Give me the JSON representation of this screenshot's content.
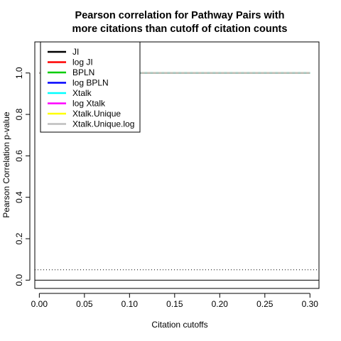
{
  "chart_data": {
    "type": "line",
    "title_lines": [
      "Pearson correlation for Pathway Pairs with",
      "more citations than cutoff of citation counts"
    ],
    "xlabel": "Citation cutoffs",
    "ylabel": "Pearson Correlation p-value",
    "xlim": [
      -0.005,
      0.31
    ],
    "ylim": [
      -0.04,
      1.15
    ],
    "x_ticks": [
      "0.00",
      "0.05",
      "0.10",
      "0.15",
      "0.20",
      "0.25",
      "0.30"
    ],
    "x_tick_values": [
      0.0,
      0.05,
      0.1,
      0.15,
      0.2,
      0.25,
      0.3
    ],
    "y_ticks": [
      "0.0",
      "0.2",
      "0.4",
      "0.6",
      "0.8",
      "1.0"
    ],
    "y_tick_values": [
      0.0,
      0.2,
      0.4,
      0.6,
      0.8,
      1.0
    ],
    "x": [
      0.0,
      0.01,
      0.02,
      0.03,
      0.04,
      0.05,
      0.06,
      0.07,
      0.08,
      0.09,
      0.1,
      0.11,
      0.12,
      0.13,
      0.14,
      0.15,
      0.16,
      0.17,
      0.18,
      0.19,
      0.2,
      0.21,
      0.22,
      0.23,
      0.24,
      0.25,
      0.26,
      0.27,
      0.28,
      0.29,
      0.3
    ],
    "series": [
      {
        "name": "JI",
        "color": "#000000",
        "dash": "solid",
        "values": [
          1,
          1,
          1,
          1,
          1,
          1,
          1,
          1,
          1,
          1,
          1,
          1,
          1,
          1,
          1,
          1,
          1,
          1,
          1,
          1,
          1,
          1,
          1,
          1,
          1,
          1,
          1,
          1,
          1,
          1,
          1
        ]
      },
      {
        "name": "log JI",
        "color": "#ff0000",
        "dash": "dashed",
        "values": [
          1,
          1,
          1,
          1,
          1,
          1,
          1,
          1,
          1,
          1,
          1,
          1,
          1,
          1,
          1,
          1,
          1,
          1,
          1,
          1,
          1,
          1,
          1,
          1,
          1,
          1,
          1,
          1,
          1,
          1,
          1
        ]
      },
      {
        "name": "BPLN",
        "color": "#00cd00",
        "dash": "solid",
        "values": [
          1,
          1,
          1,
          1,
          1,
          1,
          1,
          1,
          1,
          1,
          1,
          1,
          1,
          1,
          1,
          1,
          1,
          1,
          1,
          1,
          1,
          1,
          1,
          1,
          1,
          1,
          1,
          1,
          1,
          1,
          1
        ]
      },
      {
        "name": "log BPLN",
        "color": "#0000ff",
        "dash": "dashed",
        "values": [
          1,
          1,
          1,
          1,
          1,
          1,
          1,
          1,
          1,
          1,
          1,
          1,
          1,
          1,
          1,
          1,
          1,
          1,
          1,
          1,
          1,
          1,
          1,
          1,
          1,
          1,
          1,
          1,
          1,
          1,
          1
        ]
      },
      {
        "name": "Xtalk",
        "color": "#00ffff",
        "dash": "solid",
        "values": [
          1,
          1,
          1,
          1,
          1,
          1,
          1,
          1,
          1,
          1,
          1,
          1,
          1,
          1,
          1,
          1,
          1,
          1,
          1,
          1,
          1,
          1,
          1,
          1,
          1,
          1,
          1,
          1,
          1,
          1,
          1
        ]
      },
      {
        "name": "log Xtalk",
        "color": "#ff00ff",
        "dash": "dashed",
        "values": [
          1,
          1,
          1,
          1,
          1,
          1,
          1,
          1,
          1,
          1,
          1,
          1,
          1,
          1,
          1,
          1,
          1,
          1,
          1,
          1,
          1,
          1,
          1,
          1,
          1,
          1,
          1,
          1,
          1,
          1,
          1
        ]
      },
      {
        "name": "Xtalk.Unique",
        "color": "#ffff00",
        "dash": "dashed",
        "values": [
          1,
          1,
          1,
          1,
          1,
          1,
          1,
          1,
          1,
          1,
          1,
          1,
          1,
          1,
          1,
          1,
          1,
          1,
          1,
          1,
          1,
          1,
          1,
          1,
          1,
          1,
          1,
          1,
          1,
          1,
          1
        ]
      },
      {
        "name": "Xtalk.Unique.log",
        "color": "#bebebe",
        "dash": "solid",
        "values": [
          1,
          1,
          1,
          1,
          1,
          1,
          1,
          1,
          1,
          1,
          1,
          1,
          1,
          1,
          1,
          1,
          1,
          1,
          1,
          1,
          1,
          1,
          1,
          1,
          1,
          1,
          1,
          1,
          1,
          1,
          1
        ]
      }
    ],
    "reference_lines": [
      {
        "y": 0.05,
        "style": "dotted",
        "color": "#000000"
      },
      {
        "y": 0.0,
        "style": "solid",
        "color": "#000000"
      }
    ],
    "legend_position": "top-left",
    "grid": false
  }
}
